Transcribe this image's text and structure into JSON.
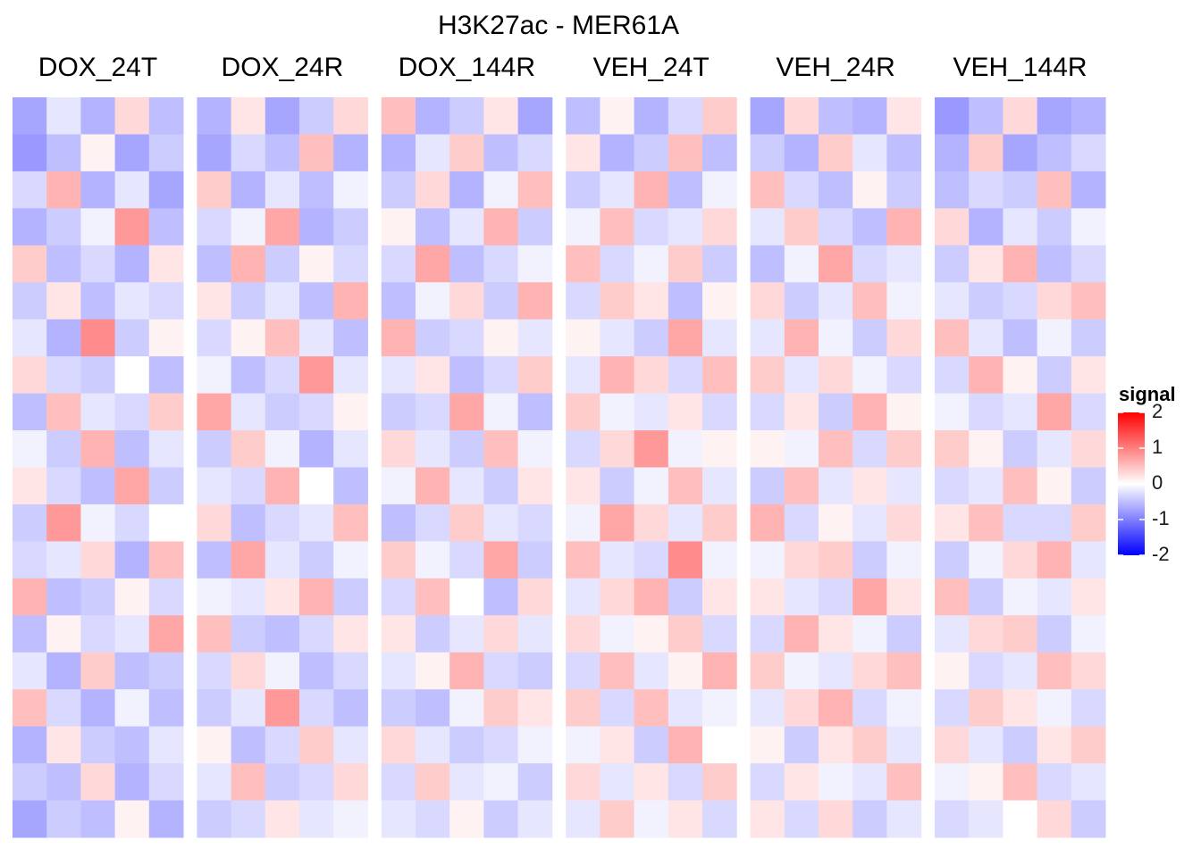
{
  "chart_data": {
    "type": "heatmap",
    "title": "H3K27ac - MER61A",
    "panels": [
      {
        "name": "DOX_24T",
        "values": [
          [
            -0.7,
            -0.2,
            -0.6,
            0.3,
            -0.5
          ],
          [
            -0.8,
            -0.5,
            0.1,
            -0.7,
            -0.4
          ],
          [
            -0.3,
            0.6,
            -0.6,
            -0.2,
            -0.7
          ],
          [
            -0.6,
            -0.4,
            -0.1,
            0.8,
            -0.5
          ],
          [
            0.4,
            -0.5,
            -0.3,
            -0.6,
            0.2
          ],
          [
            -0.4,
            0.2,
            -0.5,
            -0.2,
            -0.3
          ],
          [
            -0.2,
            -0.6,
            0.9,
            -0.4,
            0.1
          ],
          [
            0.3,
            -0.3,
            -0.4,
            0.0,
            -0.5
          ],
          [
            -0.5,
            0.5,
            -0.2,
            -0.3,
            0.4
          ],
          [
            -0.1,
            -0.4,
            0.6,
            -0.5,
            -0.2
          ],
          [
            0.2,
            -0.3,
            -0.5,
            0.7,
            -0.4
          ],
          [
            -0.4,
            0.8,
            -0.1,
            -0.3,
            0.0
          ],
          [
            -0.3,
            -0.2,
            0.3,
            -0.6,
            0.5
          ],
          [
            0.6,
            -0.5,
            -0.4,
            0.1,
            -0.3
          ],
          [
            -0.5,
            0.1,
            -0.3,
            -0.2,
            0.7
          ],
          [
            -0.2,
            -0.6,
            0.4,
            -0.5,
            -0.4
          ],
          [
            0.5,
            -0.3,
            -0.6,
            -0.1,
            -0.5
          ],
          [
            -0.6,
            0.2,
            -0.4,
            -0.5,
            -0.2
          ],
          [
            -0.4,
            -0.5,
            0.3,
            -0.6,
            -0.3
          ],
          [
            -0.7,
            -0.4,
            -0.5,
            0.1,
            -0.6
          ]
        ]
      },
      {
        "name": "DOX_24R",
        "values": [
          [
            -0.6,
            0.2,
            -0.7,
            -0.4,
            0.3
          ],
          [
            -0.7,
            -0.3,
            -0.5,
            0.5,
            -0.6
          ],
          [
            0.4,
            -0.6,
            -0.2,
            -0.5,
            -0.1
          ],
          [
            -0.3,
            -0.1,
            0.7,
            -0.6,
            -0.4
          ],
          [
            -0.5,
            0.6,
            -0.4,
            0.1,
            -0.3
          ],
          [
            0.2,
            -0.4,
            -0.2,
            -0.5,
            0.6
          ],
          [
            -0.3,
            0.1,
            0.5,
            -0.2,
            -0.5
          ],
          [
            -0.1,
            -0.5,
            -0.3,
            0.8,
            -0.2
          ],
          [
            0.7,
            -0.2,
            -0.4,
            -0.3,
            0.1
          ],
          [
            -0.4,
            0.4,
            -0.1,
            -0.6,
            -0.2
          ],
          [
            -0.2,
            -0.3,
            0.6,
            0.0,
            -0.5
          ],
          [
            0.3,
            -0.5,
            -0.3,
            -0.2,
            0.5
          ],
          [
            -0.5,
            0.7,
            -0.2,
            -0.4,
            -0.1
          ],
          [
            -0.1,
            -0.2,
            0.2,
            0.6,
            -0.4
          ],
          [
            0.5,
            -0.4,
            -0.5,
            -0.3,
            0.2
          ],
          [
            -0.3,
            0.3,
            -0.1,
            -0.5,
            -0.3
          ],
          [
            -0.4,
            -0.2,
            0.8,
            -0.3,
            -0.5
          ],
          [
            0.1,
            -0.5,
            -0.3,
            0.4,
            -0.2
          ],
          [
            -0.2,
            0.5,
            -0.4,
            -0.3,
            0.3
          ],
          [
            -0.4,
            -0.3,
            0.2,
            -0.2,
            -0.1
          ]
        ]
      },
      {
        "name": "DOX_144R",
        "values": [
          [
            0.5,
            -0.6,
            -0.4,
            0.2,
            -0.7
          ],
          [
            -0.6,
            -0.2,
            0.4,
            -0.5,
            -0.3
          ],
          [
            -0.4,
            0.3,
            -0.6,
            -0.1,
            0.5
          ],
          [
            0.1,
            -0.5,
            -0.2,
            0.6,
            -0.4
          ],
          [
            -0.3,
            0.7,
            -0.5,
            -0.3,
            -0.1
          ],
          [
            -0.5,
            -0.1,
            0.3,
            -0.4,
            0.6
          ],
          [
            0.6,
            -0.4,
            -0.3,
            0.1,
            -0.2
          ],
          [
            -0.2,
            0.2,
            -0.5,
            -0.3,
            0.4
          ],
          [
            -0.4,
            -0.3,
            0.7,
            -0.1,
            -0.5
          ],
          [
            0.3,
            -0.2,
            -0.4,
            0.5,
            -0.1
          ],
          [
            -0.1,
            0.6,
            -0.2,
            -0.4,
            0.2
          ],
          [
            -0.5,
            -0.3,
            0.4,
            -0.2,
            -0.3
          ],
          [
            0.4,
            -0.1,
            -0.3,
            0.7,
            -0.4
          ],
          [
            -0.3,
            0.5,
            0.0,
            -0.5,
            0.3
          ],
          [
            0.2,
            -0.4,
            -0.2,
            0.3,
            -0.2
          ],
          [
            -0.2,
            0.1,
            0.6,
            -0.3,
            -0.4
          ],
          [
            -0.4,
            -0.5,
            -0.1,
            0.4,
            0.2
          ],
          [
            0.3,
            -0.2,
            -0.4,
            -0.3,
            -0.1
          ],
          [
            -0.3,
            0.4,
            -0.2,
            -0.1,
            -0.4
          ],
          [
            -0.2,
            -0.3,
            0.1,
            -0.4,
            -0.2
          ]
        ]
      },
      {
        "name": "VEH_24T",
        "values": [
          [
            -0.5,
            0.1,
            -0.6,
            -0.3,
            0.4
          ],
          [
            0.2,
            -0.6,
            -0.4,
            0.5,
            -0.5
          ],
          [
            -0.4,
            -0.2,
            0.6,
            -0.5,
            -0.1
          ],
          [
            -0.1,
            0.5,
            -0.3,
            -0.2,
            0.3
          ],
          [
            0.5,
            -0.3,
            -0.1,
            0.4,
            -0.4
          ],
          [
            -0.3,
            0.4,
            0.2,
            -0.5,
            0.1
          ],
          [
            0.1,
            -0.2,
            -0.4,
            0.7,
            -0.2
          ],
          [
            -0.2,
            0.6,
            0.3,
            -0.3,
            0.5
          ],
          [
            0.4,
            -0.1,
            -0.2,
            0.2,
            -0.3
          ],
          [
            -0.3,
            0.3,
            0.8,
            -0.1,
            0.1
          ],
          [
            0.2,
            -0.4,
            -0.1,
            0.5,
            -0.2
          ],
          [
            -0.1,
            0.7,
            0.3,
            -0.2,
            0.4
          ],
          [
            0.5,
            -0.2,
            -0.3,
            0.9,
            -0.1
          ],
          [
            -0.2,
            0.3,
            0.6,
            -0.4,
            0.2
          ],
          [
            0.3,
            -0.1,
            0.1,
            0.4,
            -0.3
          ],
          [
            -0.3,
            0.5,
            -0.2,
            0.1,
            0.6
          ],
          [
            0.4,
            -0.3,
            0.5,
            -0.2,
            -0.1
          ],
          [
            -0.1,
            0.2,
            -0.4,
            0.6,
            0.0
          ],
          [
            0.3,
            -0.2,
            0.2,
            -0.3,
            0.4
          ],
          [
            -0.2,
            0.4,
            -0.1,
            0.2,
            -0.3
          ]
        ]
      },
      {
        "name": "VEH_24R",
        "values": [
          [
            -0.7,
            0.3,
            -0.5,
            -0.6,
            0.2
          ],
          [
            -0.4,
            -0.6,
            0.4,
            -0.2,
            -0.5
          ],
          [
            0.5,
            -0.3,
            -0.5,
            0.1,
            -0.4
          ],
          [
            -0.2,
            0.4,
            -0.3,
            -0.5,
            0.6
          ],
          [
            -0.5,
            -0.1,
            0.7,
            -0.3,
            -0.2
          ],
          [
            0.3,
            -0.4,
            -0.2,
            0.5,
            -0.1
          ],
          [
            -0.2,
            0.6,
            -0.1,
            -0.4,
            0.3
          ],
          [
            0.4,
            -0.2,
            0.3,
            -0.1,
            -0.3
          ],
          [
            -0.3,
            0.2,
            -0.4,
            0.6,
            0.1
          ],
          [
            0.1,
            -0.1,
            0.5,
            -0.3,
            0.4
          ],
          [
            -0.4,
            0.5,
            -0.2,
            0.2,
            -0.2
          ],
          [
            0.6,
            -0.3,
            0.1,
            -0.2,
            0.3
          ],
          [
            -0.1,
            0.3,
            0.4,
            -0.4,
            -0.1
          ],
          [
            0.2,
            -0.2,
            -0.3,
            0.7,
            0.2
          ],
          [
            -0.3,
            0.6,
            0.2,
            -0.1,
            -0.4
          ],
          [
            0.4,
            -0.1,
            -0.2,
            0.3,
            0.5
          ],
          [
            -0.2,
            0.3,
            0.6,
            -0.3,
            -0.1
          ],
          [
            0.1,
            -0.4,
            0.2,
            0.4,
            -0.2
          ],
          [
            -0.3,
            0.2,
            -0.1,
            -0.2,
            0.5
          ],
          [
            0.2,
            -0.3,
            0.3,
            -0.4,
            -0.2
          ]
        ]
      },
      {
        "name": "VEH_144R",
        "values": [
          [
            -0.8,
            -0.5,
            0.3,
            -0.7,
            -0.6
          ],
          [
            -0.6,
            0.4,
            -0.7,
            -0.5,
            -0.3
          ],
          [
            -0.5,
            -0.3,
            -0.4,
            0.5,
            -0.6
          ],
          [
            0.3,
            -0.6,
            -0.2,
            -0.4,
            -0.1
          ],
          [
            -0.4,
            0.2,
            0.6,
            -0.5,
            -0.3
          ],
          [
            -0.2,
            -0.4,
            -0.3,
            0.3,
            0.5
          ],
          [
            0.5,
            -0.2,
            -0.5,
            -0.1,
            -0.4
          ],
          [
            -0.3,
            0.6,
            0.1,
            -0.4,
            0.2
          ],
          [
            -0.1,
            -0.3,
            -0.2,
            0.7,
            -0.3
          ],
          [
            0.4,
            0.1,
            -0.4,
            -0.2,
            0.3
          ],
          [
            -0.3,
            -0.2,
            0.5,
            0.1,
            -0.4
          ],
          [
            0.2,
            0.5,
            -0.3,
            -0.3,
            0.4
          ],
          [
            -0.4,
            -0.1,
            0.3,
            0.6,
            -0.2
          ],
          [
            0.5,
            -0.4,
            -0.1,
            -0.2,
            0.2
          ],
          [
            -0.2,
            0.3,
            0.4,
            -0.4,
            -0.1
          ],
          [
            0.1,
            -0.3,
            -0.2,
            0.5,
            0.3
          ],
          [
            -0.3,
            0.4,
            0.2,
            -0.1,
            -0.3
          ],
          [
            0.3,
            -0.2,
            -0.4,
            0.2,
            0.4
          ],
          [
            -0.1,
            0.1,
            0.5,
            -0.3,
            -0.2
          ],
          [
            -0.3,
            -0.2,
            0.0,
            0.3,
            -0.4
          ]
        ]
      }
    ],
    "colorbar": {
      "title": "signal",
      "lim": [
        -2,
        2
      ],
      "ticks": [
        -2,
        -1,
        0,
        1,
        2
      ],
      "colors": [
        "#0000ff",
        "#ffffff",
        "#ff0000"
      ]
    }
  }
}
